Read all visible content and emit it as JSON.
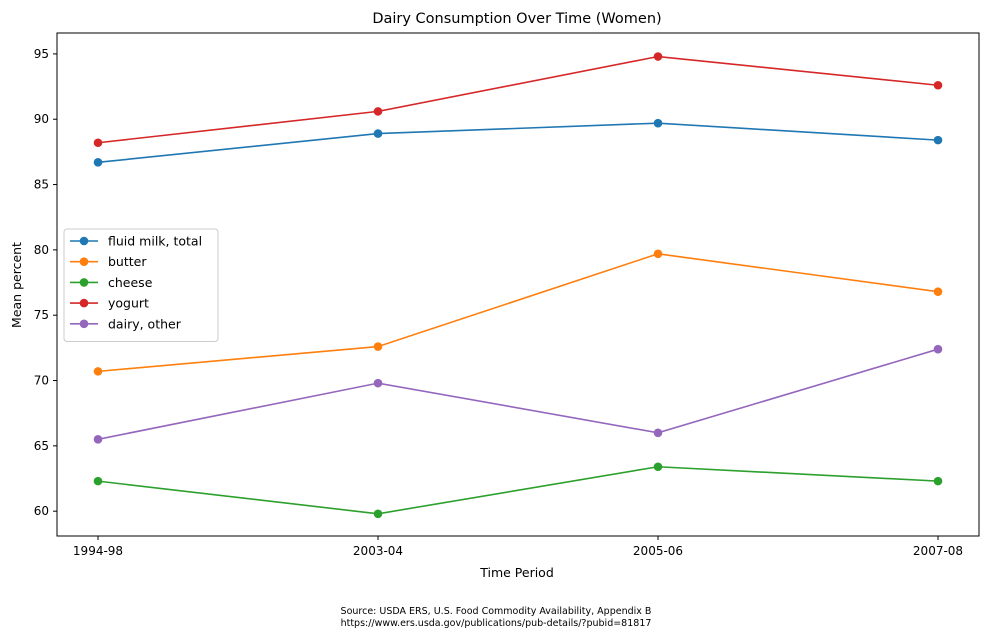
{
  "chart_data": {
    "type": "line",
    "title": "Dairy Consumption Over Time (Women)",
    "xlabel": "Time Period",
    "ylabel": "Mean percent",
    "categories": [
      "1994-98",
      "2003-04",
      "2005-06",
      "2007-08"
    ],
    "ylim": [
      58.1,
      96.6
    ],
    "yticks": [
      60,
      65,
      70,
      75,
      80,
      85,
      90,
      95
    ],
    "grid": false,
    "legend_position": "center-left",
    "series": [
      {
        "name": "fluid milk, total",
        "color": "#1f77b4",
        "values": [
          86.7,
          88.9,
          89.7,
          88.4
        ]
      },
      {
        "name": "butter",
        "color": "#ff7f0e",
        "values": [
          70.7,
          72.6,
          79.7,
          76.8
        ]
      },
      {
        "name": "cheese",
        "color": "#2ca02c",
        "values": [
          62.3,
          59.8,
          63.4,
          62.3
        ]
      },
      {
        "name": "yogurt",
        "color": "#d62728",
        "values": [
          88.2,
          90.6,
          94.8,
          92.6
        ]
      },
      {
        "name": "dairy, other",
        "color": "#9467bd",
        "values": [
          65.5,
          69.8,
          66.0,
          72.4
        ]
      }
    ]
  },
  "source": {
    "line1": "Source: USDA ERS, U.S. Food Commodity Availability, Appendix B",
    "line2": "https://www.ers.usda.gov/publications/pub-details/?pubid=81817"
  }
}
